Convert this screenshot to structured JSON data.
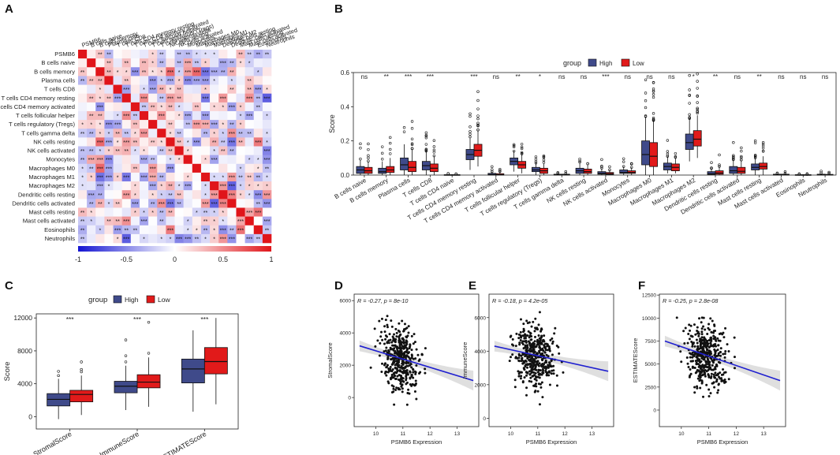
{
  "panel_labels": {
    "A": "A",
    "B": "B",
    "C": "C",
    "D": "D",
    "E": "E",
    "F": "F"
  },
  "colors": {
    "high": "#3f4a8a",
    "low": "#e11a1a",
    "neg": "#1414d2",
    "pos": "#e0151a",
    "line": "#1f1fd0"
  },
  "chart_data": [
    {
      "id": "A",
      "type": "heatmap",
      "title": "",
      "labels": [
        "PSMB6",
        "B cells naive",
        "B cells memory",
        "Plasma cells",
        "T cells CD8",
        "T cells CD4 memory resting",
        "T cells CD4 memory activated",
        "T cells follicular helper",
        "T cells regulatory (Tregs)",
        "T cells gamma delta",
        "NK cells resting",
        "NK cells activated",
        "Monocytes",
        "Macrophages M0",
        "Macrophages M1",
        "Macrophages M2",
        "Dendritic cells resting",
        "Dendritic cells activated",
        "Mast cells resting",
        "Mast cells activated",
        "Eosinophils",
        "Neutrophils"
      ],
      "colorbar_ticks": [
        "-1",
        "-0.5",
        "0",
        "0.5",
        "1"
      ],
      "colorbar_range": [
        -1,
        1
      ],
      "values_note": "pairwise correlation with significance stars; diagonal = 1"
    },
    {
      "id": "B",
      "type": "box",
      "ylabel": "Score",
      "ylim": [
        0,
        0.6
      ],
      "yticks": [
        "0.0",
        "0.2",
        "0.4",
        "0.6"
      ],
      "legend": {
        "title": "group",
        "items": [
          "High",
          "Low"
        ],
        "placement": "top"
      },
      "categories": [
        "B cells naive",
        "B cells memory",
        "Plasma cells",
        "T cells CD8",
        "T cells CD4 naive",
        "T cells CD4 memory resting",
        "T cells CD4 memory activated",
        "T cells follicular helper",
        "T cells regulatory (Tregs)",
        "T cells gamma delta",
        "NK cells resting",
        "NK cells activated",
        "Monocytes",
        "Macrophages M0",
        "Macrophages M1",
        "Macrophages M2",
        "Dendritic cells resting",
        "Dendritic cells activated",
        "Mast cells resting",
        "Mast cells activated",
        "Eosinophils",
        "Neutrophils"
      ],
      "significance": [
        "ns",
        "**",
        "***",
        "***",
        "",
        "***",
        "ns",
        "**",
        "*",
        "ns",
        "ns",
        "***",
        "ns",
        "ns",
        "ns",
        "*",
        "**",
        "ns",
        "**",
        "ns",
        "ns",
        "ns"
      ],
      "series": [
        {
          "name": "High",
          "boxes": [
            [
              0,
              0.01,
              0.03,
              0.05,
              0.09
            ],
            [
              0,
              0.01,
              0.02,
              0.04,
              0.08
            ],
            [
              0,
              0.03,
              0.06,
              0.1,
              0.18
            ],
            [
              0,
              0.03,
              0.055,
              0.08,
              0.14
            ],
            [
              0,
              0,
              0.001,
              0.002,
              0.004
            ],
            [
              0.03,
              0.09,
              0.12,
              0.15,
              0.22
            ],
            [
              0,
              0,
              0.003,
              0.01,
              0.02
            ],
            [
              0.02,
              0.06,
              0.08,
              0.1,
              0.14
            ],
            [
              0,
              0.02,
              0.03,
              0.045,
              0.07
            ],
            [
              0,
              0,
              0.002,
              0.005,
              0.01
            ],
            [
              0,
              0.01,
              0.025,
              0.04,
              0.07
            ],
            [
              0,
              0.005,
              0.01,
              0.02,
              0.04
            ],
            [
              0,
              0.01,
              0.015,
              0.03,
              0.05
            ],
            [
              0,
              0.06,
              0.12,
              0.2,
              0.34
            ],
            [
              0.01,
              0.03,
              0.05,
              0.07,
              0.11
            ],
            [
              0.08,
              0.15,
              0.19,
              0.24,
              0.33
            ],
            [
              0,
              0.003,
              0.008,
              0.02,
              0.04
            ],
            [
              0,
              0.01,
              0.025,
              0.05,
              0.09
            ],
            [
              0,
              0.03,
              0.045,
              0.065,
              0.1
            ],
            [
              0,
              0,
              0.002,
              0.005,
              0.01
            ],
            [
              0,
              0,
              0.001,
              0.002,
              0.004
            ],
            [
              0,
              0,
              0.002,
              0.005,
              0.01
            ]
          ]
        },
        {
          "name": "Low",
          "boxes": [
            [
              0,
              0.01,
              0.025,
              0.045,
              0.08
            ],
            [
              0,
              0.015,
              0.03,
              0.05,
              0.1
            ],
            [
              0,
              0.02,
              0.045,
              0.08,
              0.15
            ],
            [
              0,
              0.02,
              0.04,
              0.065,
              0.11
            ],
            [
              0,
              0,
              0.001,
              0.002,
              0.004
            ],
            [
              0.05,
              0.11,
              0.145,
              0.18,
              0.26
            ],
            [
              0,
              0,
              0.002,
              0.008,
              0.02
            ],
            [
              0.01,
              0.04,
              0.06,
              0.08,
              0.12
            ],
            [
              0,
              0.01,
              0.025,
              0.04,
              0.065
            ],
            [
              0,
              0,
              0.002,
              0.005,
              0.01
            ],
            [
              0,
              0.01,
              0.02,
              0.035,
              0.06
            ],
            [
              0,
              0.003,
              0.008,
              0.015,
              0.03
            ],
            [
              0,
              0.01,
              0.015,
              0.025,
              0.045
            ],
            [
              0,
              0.05,
              0.11,
              0.19,
              0.32
            ],
            [
              0.01,
              0.025,
              0.045,
              0.065,
              0.1
            ],
            [
              0.1,
              0.17,
              0.21,
              0.26,
              0.35
            ],
            [
              0,
              0.005,
              0.012,
              0.025,
              0.05
            ],
            [
              0,
              0.01,
              0.022,
              0.045,
              0.085
            ],
            [
              0,
              0.035,
              0.05,
              0.07,
              0.11
            ],
            [
              0,
              0,
              0.002,
              0.005,
              0.01
            ],
            [
              0,
              0,
              0.001,
              0.002,
              0.004
            ],
            [
              0,
              0,
              0.002,
              0.004,
              0.01
            ]
          ]
        }
      ]
    },
    {
      "id": "C",
      "type": "box",
      "ylabel": "Score",
      "ylim": [
        -1500,
        12500
      ],
      "yticks": [
        "0",
        "4000",
        "8000",
        "12000"
      ],
      "legend": {
        "title": "group",
        "items": [
          "High",
          "Low"
        ],
        "placement": "top"
      },
      "categories": [
        "StromalScore",
        "ImmuneScore",
        "ESTIMATEScore"
      ],
      "significance": [
        "***",
        "***",
        "***"
      ],
      "series": [
        {
          "name": "High",
          "boxes": [
            [
              -300,
              1300,
              2100,
              2800,
              4600
            ],
            [
              800,
              2900,
              3700,
              4300,
              6200
            ],
            [
              600,
              4100,
              5800,
              7000,
              10500
            ]
          ]
        },
        {
          "name": "Low",
          "boxes": [
            [
              200,
              1800,
              2700,
              3200,
              5000
            ],
            [
              1200,
              3500,
              4200,
              5100,
              7200
            ],
            [
              1500,
              5200,
              6700,
              8400,
              12000
            ]
          ]
        }
      ]
    },
    {
      "id": "D",
      "type": "scatter",
      "annotation": "R = -0.27, p = 8e-10",
      "xlabel": "PSMB6 Expression",
      "ylabel": "StromalScore",
      "xlim": [
        9.2,
        13.8
      ],
      "ylim": [
        -1800,
        6400
      ],
      "xticks": [
        "10",
        "11",
        "12",
        "13"
      ],
      "yticks": [
        "0",
        "2000",
        "4000",
        "6000"
      ],
      "trend": {
        "x": [
          9.4,
          13.6
        ],
        "y": [
          3200,
          1050
        ]
      }
    },
    {
      "id": "E",
      "type": "scatter",
      "annotation": "R = -0.18, p = 4.2e-05",
      "xlabel": "PSMB6 Expression",
      "ylabel": "ImmuneScore",
      "xlim": [
        9.2,
        13.8
      ],
      "ylim": [
        -500,
        7400
      ],
      "xticks": [
        "10",
        "11",
        "12",
        "13"
      ],
      "yticks": [
        "0",
        "2000",
        "4000",
        "6000"
      ],
      "trend": {
        "x": [
          9.4,
          13.6
        ],
        "y": [
          4300,
          2800
        ]
      }
    },
    {
      "id": "F",
      "type": "scatter",
      "annotation": "R = -0.25, p = 2.8e-08",
      "xlabel": "PSMB6 Expression",
      "ylabel": "ESTIMATEScore",
      "xlim": [
        9.2,
        13.8
      ],
      "ylim": [
        -1800,
        12600
      ],
      "xticks": [
        "10",
        "11",
        "12",
        "13"
      ],
      "yticks": [
        "0",
        "2500",
        "5000",
        "7500",
        "10000",
        "12500"
      ],
      "trend": {
        "x": [
          9.4,
          13.6
        ],
        "y": [
          7500,
          3200
        ]
      }
    }
  ]
}
